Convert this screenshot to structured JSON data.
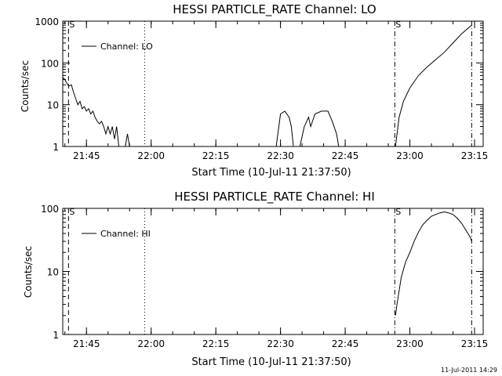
{
  "chart_data": [
    {
      "type": "line",
      "title": "HESSI PARTICLE_RATE Channel: LO",
      "xlabel": "Start Time (10-Jul-11 21:37:50)",
      "ylabel": "Counts/sec",
      "yscale": "log",
      "ylim": [
        1,
        1000
      ],
      "xlim": [
        "21:39:30",
        "23:17:00"
      ],
      "xticks": [
        "21:45",
        "22:00",
        "22:15",
        "22:30",
        "22:45",
        "23:00",
        "23:15"
      ],
      "yticks": [
        "1",
        "10",
        "100",
        "1000"
      ],
      "legend": {
        "entries": [
          "Channel: LO"
        ],
        "placement": "top-left"
      },
      "markers": [
        {
          "time": "21:40:50",
          "style": "dashed",
          "label": "S"
        },
        {
          "time": "21:58:30",
          "style": "dotted",
          "label": ""
        },
        {
          "time": "22:56:30",
          "style": "dashdot",
          "label": "S"
        },
        {
          "time": "23:14:20",
          "style": "dashdot",
          "label": ""
        }
      ],
      "series": [
        {
          "name": "Channel: LO",
          "segments": [
            [
              [
                "21:39:30",
                45
              ],
              [
                "21:40:00",
                40
              ],
              [
                "21:40:30",
                32
              ],
              [
                "21:41:00",
                28
              ],
              [
                "21:41:30",
                30
              ],
              [
                "21:42:00",
                20
              ],
              [
                "21:42:30",
                14
              ],
              [
                "21:43:00",
                10
              ],
              [
                "21:43:30",
                12
              ],
              [
                "21:44:00",
                8
              ],
              [
                "21:44:30",
                9
              ],
              [
                "21:45:00",
                7
              ],
              [
                "21:45:30",
                8
              ],
              [
                "21:46:00",
                6
              ],
              [
                "21:46:30",
                7
              ],
              [
                "21:47:00",
                5
              ],
              [
                "21:47:30",
                4
              ],
              [
                "21:48:00",
                3.5
              ],
              [
                "21:48:30",
                4
              ],
              [
                "21:49:00",
                3
              ],
              [
                "21:49:30",
                2
              ],
              [
                "21:50:00",
                3
              ],
              [
                "21:50:30",
                2
              ],
              [
                "21:51:00",
                3
              ],
              [
                "21:51:30",
                1.5
              ],
              [
                "21:52:00",
                3
              ],
              [
                "21:52:30",
                1
              ]
            ],
            [
              [
                "21:54:00",
                1
              ],
              [
                "21:54:30",
                2
              ],
              [
                "21:55:00",
                1
              ]
            ],
            [
              [
                "22:29:00",
                1
              ],
              [
                "22:30:00",
                6
              ],
              [
                "22:31:00",
                7
              ],
              [
                "22:32:00",
                5
              ],
              [
                "22:32:30",
                3
              ],
              [
                "22:33:00",
                1
              ]
            ],
            [
              [
                "22:34:30",
                1
              ],
              [
                "22:35:30",
                3
              ],
              [
                "22:36:30",
                5
              ],
              [
                "22:37:00",
                3
              ],
              [
                "22:38:00",
                6
              ],
              [
                "22:39:30",
                7
              ],
              [
                "22:41:00",
                7
              ],
              [
                "22:42:00",
                4
              ],
              [
                "22:43:00",
                2
              ],
              [
                "22:43:30",
                1
              ]
            ],
            [
              [
                "22:56:40",
                1
              ],
              [
                "22:57:30",
                5
              ],
              [
                "22:58:30",
                12
              ],
              [
                "23:00:00",
                25
              ],
              [
                "23:02:00",
                50
              ],
              [
                "23:04:00",
                80
              ],
              [
                "23:06:00",
                120
              ],
              [
                "23:08:00",
                180
              ],
              [
                "23:10:00",
                300
              ],
              [
                "23:12:00",
                500
              ],
              [
                "23:14:00",
                750
              ],
              [
                "23:14:20",
                800
              ]
            ]
          ]
        }
      ]
    },
    {
      "type": "line",
      "title": "HESSI PARTICLE_RATE Channel: HI",
      "xlabel": "Start Time (10-Jul-11 21:37:50)",
      "ylabel": "Counts/sec",
      "yscale": "log",
      "ylim": [
        1,
        100
      ],
      "xlim": [
        "21:39:30",
        "23:17:00"
      ],
      "xticks": [
        "21:45",
        "22:00",
        "22:15",
        "22:30",
        "22:45",
        "23:00",
        "23:15"
      ],
      "yticks": [
        "1",
        "10",
        "100"
      ],
      "legend": {
        "entries": [
          "Channel: HI"
        ],
        "placement": "top-left"
      },
      "markers": [
        {
          "time": "21:40:50",
          "style": "dashed",
          "label": "S"
        },
        {
          "time": "21:58:30",
          "style": "dotted",
          "label": ""
        },
        {
          "time": "22:56:30",
          "style": "dashdot",
          "label": "S"
        },
        {
          "time": "23:14:20",
          "style": "dashdot",
          "label": ""
        }
      ],
      "series": [
        {
          "name": "Channel: HI",
          "segments": [
            [
              [
                "22:56:40",
                2
              ],
              [
                "22:57:00",
                3
              ],
              [
                "22:58:00",
                8
              ],
              [
                "22:59:00",
                14
              ],
              [
                "23:00:00",
                20
              ],
              [
                "23:01:00",
                30
              ],
              [
                "23:02:00",
                42
              ],
              [
                "23:03:00",
                55
              ],
              [
                "23:04:00",
                65
              ],
              [
                "23:05:00",
                75
              ],
              [
                "23:06:00",
                80
              ],
              [
                "23:07:00",
                85
              ],
              [
                "23:08:00",
                88
              ],
              [
                "23:09:00",
                85
              ],
              [
                "23:10:00",
                80
              ],
              [
                "23:11:00",
                70
              ],
              [
                "23:12:00",
                58
              ],
              [
                "23:13:00",
                45
              ],
              [
                "23:14:00",
                35
              ],
              [
                "23:14:20",
                30
              ]
            ]
          ]
        }
      ]
    }
  ],
  "timestamp": "11-Jul-2011 14:29"
}
